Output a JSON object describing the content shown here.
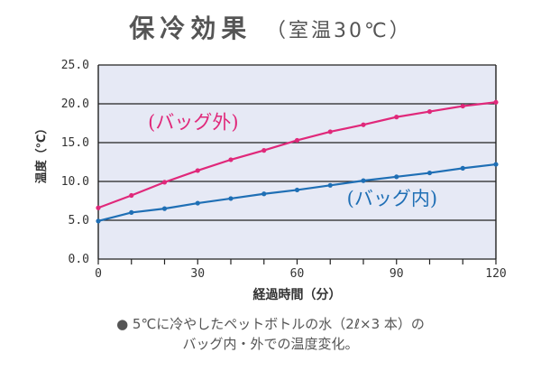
{
  "chart_data": {
    "type": "line",
    "title": "保冷効果",
    "subtitle": "（室温30℃）",
    "xlabel": "経過時間（分）",
    "ylabel": "温度（℃）",
    "xlim": [
      0,
      120
    ],
    "ylim": [
      0,
      25
    ],
    "xticks": [
      "0",
      "30",
      "60",
      "90",
      "120"
    ],
    "yticks": [
      "0.0",
      "5.0",
      "10.0",
      "15.0",
      "20.0",
      "25.0"
    ],
    "grid": "horizontal",
    "series": [
      {
        "name": "(バッグ外)",
        "color": "#e0287a",
        "x": [
          0,
          10,
          20,
          30,
          40,
          50,
          60,
          70,
          80,
          90,
          100,
          110,
          120
        ],
        "y": [
          6.6,
          8.2,
          9.9,
          11.4,
          12.8,
          14.0,
          15.3,
          16.4,
          17.3,
          18.3,
          19.0,
          19.7,
          20.2
        ]
      },
      {
        "name": "(バッグ内)",
        "color": "#1f6fb5",
        "x": [
          0,
          10,
          20,
          30,
          40,
          50,
          60,
          70,
          80,
          90,
          100,
          110,
          120
        ],
        "y": [
          4.9,
          6.0,
          6.5,
          7.2,
          7.8,
          8.4,
          8.9,
          9.5,
          10.1,
          10.6,
          11.1,
          11.7,
          12.2
        ]
      }
    ],
    "caption": [
      "● 5℃に冷やしたペットボトルの水（2ℓ×3 本）の",
      "バッグ内・外での温度変化。"
    ],
    "colors": {
      "plot_background": "#e6e9f5",
      "grid": "#222222",
      "text": "#333333"
    }
  }
}
